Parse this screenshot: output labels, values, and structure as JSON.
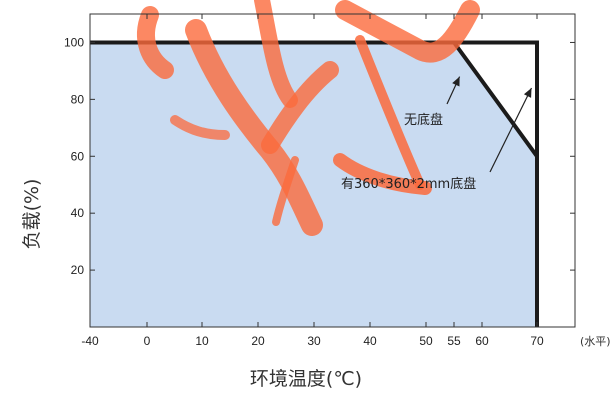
{
  "chart_data": {
    "type": "area",
    "title": "",
    "xlabel": "环境温度(℃)",
    "ylabel": "负载(%)",
    "x_unit_note": "(水平)",
    "xlim": [
      -40,
      70
    ],
    "ylim": [
      0,
      110
    ],
    "x_ticks": [
      -40,
      0,
      10,
      20,
      30,
      40,
      50,
      55,
      60,
      70
    ],
    "y_ticks": [
      20,
      40,
      60,
      80,
      100
    ],
    "colors": {
      "fill": "#c9dbf1",
      "line": "#1b1b1b",
      "watermark": "#fb6a3c"
    },
    "series": [
      {
        "name": "无底盘",
        "x": [
          -40,
          55,
          70
        ],
        "y": [
          100,
          100,
          60
        ]
      },
      {
        "name": "有360*360*2mm底盘",
        "x": [
          -40,
          70,
          70
        ],
        "y": [
          100,
          100,
          0
        ]
      }
    ],
    "annotations": [
      {
        "text": "无底盘",
        "points_to": {
          "x": 56,
          "y": 88
        }
      },
      {
        "text": "有360*360*2mm底盘",
        "points_to": {
          "x": 69,
          "y": 84
        }
      }
    ],
    "watermark": "logo"
  }
}
